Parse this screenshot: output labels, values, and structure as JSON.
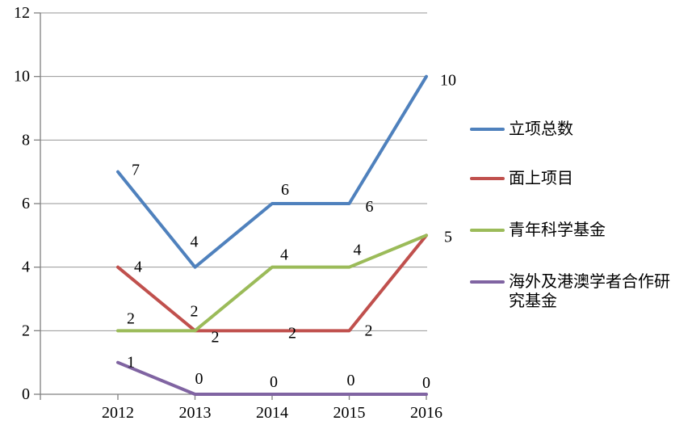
{
  "chart_data": {
    "type": "line",
    "title": "",
    "xlabel": "",
    "ylabel": "",
    "categories": [
      "2012",
      "2013",
      "2014",
      "2015",
      "2016"
    ],
    "series": [
      {
        "name": "立项总数",
        "color": "#4F81BD",
        "values": [
          7,
          4,
          6,
          6,
          10
        ],
        "point_labels": [
          "7",
          "4",
          "6",
          "6",
          "10"
        ]
      },
      {
        "name": "面上项目",
        "color": "#C0504D",
        "values": [
          4,
          2,
          2,
          2,
          5
        ],
        "point_labels": [
          "4",
          "2",
          "2",
          "2",
          "5"
        ]
      },
      {
        "name": "青年科学基金",
        "color": "#9BBB59",
        "values": [
          2,
          2,
          4,
          4,
          5
        ],
        "point_labels": [
          "2",
          "2",
          "4",
          "4",
          ""
        ]
      },
      {
        "name": "海外及港澳学者合作研究基金",
        "color": "#8064A2",
        "values": [
          1,
          0,
          0,
          0,
          0
        ],
        "point_labels": [
          "1",
          "0",
          "0",
          "0",
          "0"
        ]
      }
    ],
    "ylim": [
      0,
      12
    ],
    "ytick_step": 2,
    "y_tick_labels": [
      "0",
      "2",
      "4",
      "6",
      "8",
      "10",
      "12"
    ],
    "grid": true,
    "legend_position": "right",
    "axis_color": "#808080",
    "gridline_color": "#969696"
  }
}
